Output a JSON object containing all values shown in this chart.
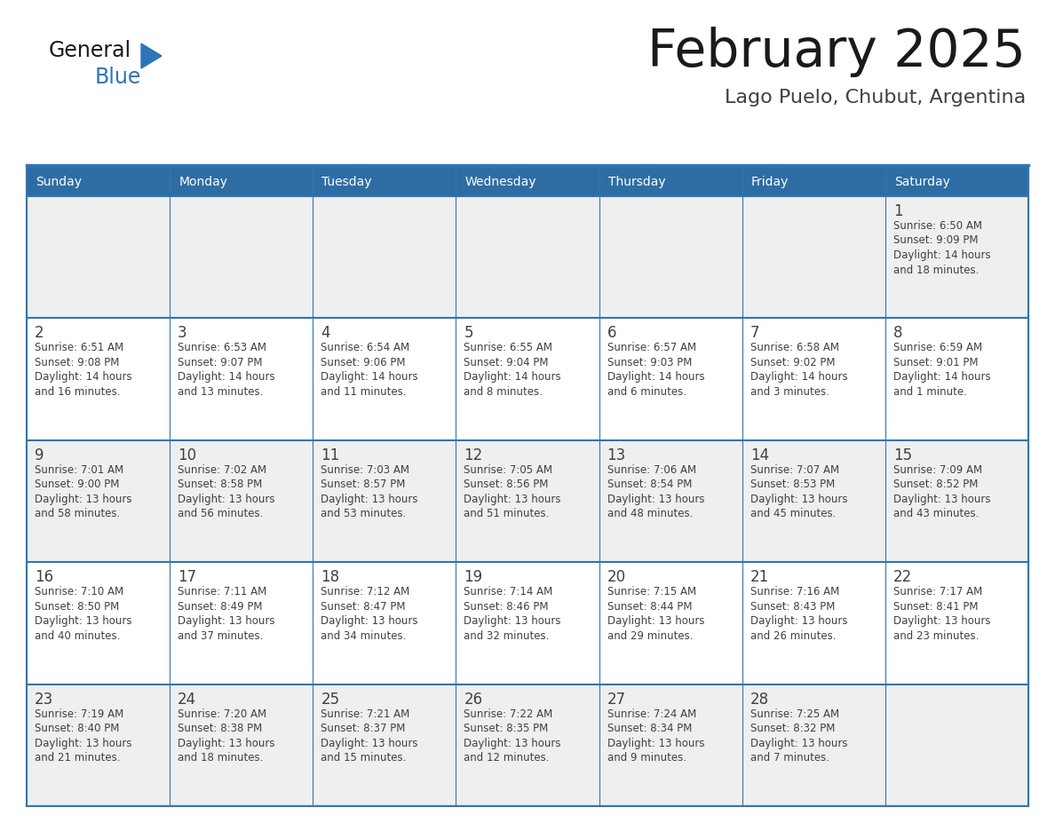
{
  "title": "February 2025",
  "subtitle": "Lago Puelo, Chubut, Argentina",
  "header_bg": "#2E6DA4",
  "header_text": "#FFFFFF",
  "cell_bg_odd": "#EFEFEF",
  "cell_bg_even": "#FFFFFF",
  "border_color": "#2E75B6",
  "row_border_color": "#2E75B6",
  "day_headers": [
    "Sunday",
    "Monday",
    "Tuesday",
    "Wednesday",
    "Thursday",
    "Friday",
    "Saturday"
  ],
  "title_color": "#1a1a1a",
  "subtitle_color": "#404040",
  "day_num_color": "#404040",
  "cell_text_color": "#404040",
  "logo_general_color": "#1a1a1a",
  "logo_blue_color": "#2E75B6",
  "weeks": [
    [
      {
        "day": null,
        "info": ""
      },
      {
        "day": null,
        "info": ""
      },
      {
        "day": null,
        "info": ""
      },
      {
        "day": null,
        "info": ""
      },
      {
        "day": null,
        "info": ""
      },
      {
        "day": null,
        "info": ""
      },
      {
        "day": 1,
        "info": "Sunrise: 6:50 AM\nSunset: 9:09 PM\nDaylight: 14 hours\nand 18 minutes."
      }
    ],
    [
      {
        "day": 2,
        "info": "Sunrise: 6:51 AM\nSunset: 9:08 PM\nDaylight: 14 hours\nand 16 minutes."
      },
      {
        "day": 3,
        "info": "Sunrise: 6:53 AM\nSunset: 9:07 PM\nDaylight: 14 hours\nand 13 minutes."
      },
      {
        "day": 4,
        "info": "Sunrise: 6:54 AM\nSunset: 9:06 PM\nDaylight: 14 hours\nand 11 minutes."
      },
      {
        "day": 5,
        "info": "Sunrise: 6:55 AM\nSunset: 9:04 PM\nDaylight: 14 hours\nand 8 minutes."
      },
      {
        "day": 6,
        "info": "Sunrise: 6:57 AM\nSunset: 9:03 PM\nDaylight: 14 hours\nand 6 minutes."
      },
      {
        "day": 7,
        "info": "Sunrise: 6:58 AM\nSunset: 9:02 PM\nDaylight: 14 hours\nand 3 minutes."
      },
      {
        "day": 8,
        "info": "Sunrise: 6:59 AM\nSunset: 9:01 PM\nDaylight: 14 hours\nand 1 minute."
      }
    ],
    [
      {
        "day": 9,
        "info": "Sunrise: 7:01 AM\nSunset: 9:00 PM\nDaylight: 13 hours\nand 58 minutes."
      },
      {
        "day": 10,
        "info": "Sunrise: 7:02 AM\nSunset: 8:58 PM\nDaylight: 13 hours\nand 56 minutes."
      },
      {
        "day": 11,
        "info": "Sunrise: 7:03 AM\nSunset: 8:57 PM\nDaylight: 13 hours\nand 53 minutes."
      },
      {
        "day": 12,
        "info": "Sunrise: 7:05 AM\nSunset: 8:56 PM\nDaylight: 13 hours\nand 51 minutes."
      },
      {
        "day": 13,
        "info": "Sunrise: 7:06 AM\nSunset: 8:54 PM\nDaylight: 13 hours\nand 48 minutes."
      },
      {
        "day": 14,
        "info": "Sunrise: 7:07 AM\nSunset: 8:53 PM\nDaylight: 13 hours\nand 45 minutes."
      },
      {
        "day": 15,
        "info": "Sunrise: 7:09 AM\nSunset: 8:52 PM\nDaylight: 13 hours\nand 43 minutes."
      }
    ],
    [
      {
        "day": 16,
        "info": "Sunrise: 7:10 AM\nSunset: 8:50 PM\nDaylight: 13 hours\nand 40 minutes."
      },
      {
        "day": 17,
        "info": "Sunrise: 7:11 AM\nSunset: 8:49 PM\nDaylight: 13 hours\nand 37 minutes."
      },
      {
        "day": 18,
        "info": "Sunrise: 7:12 AM\nSunset: 8:47 PM\nDaylight: 13 hours\nand 34 minutes."
      },
      {
        "day": 19,
        "info": "Sunrise: 7:14 AM\nSunset: 8:46 PM\nDaylight: 13 hours\nand 32 minutes."
      },
      {
        "day": 20,
        "info": "Sunrise: 7:15 AM\nSunset: 8:44 PM\nDaylight: 13 hours\nand 29 minutes."
      },
      {
        "day": 21,
        "info": "Sunrise: 7:16 AM\nSunset: 8:43 PM\nDaylight: 13 hours\nand 26 minutes."
      },
      {
        "day": 22,
        "info": "Sunrise: 7:17 AM\nSunset: 8:41 PM\nDaylight: 13 hours\nand 23 minutes."
      }
    ],
    [
      {
        "day": 23,
        "info": "Sunrise: 7:19 AM\nSunset: 8:40 PM\nDaylight: 13 hours\nand 21 minutes."
      },
      {
        "day": 24,
        "info": "Sunrise: 7:20 AM\nSunset: 8:38 PM\nDaylight: 13 hours\nand 18 minutes."
      },
      {
        "day": 25,
        "info": "Sunrise: 7:21 AM\nSunset: 8:37 PM\nDaylight: 13 hours\nand 15 minutes."
      },
      {
        "day": 26,
        "info": "Sunrise: 7:22 AM\nSunset: 8:35 PM\nDaylight: 13 hours\nand 12 minutes."
      },
      {
        "day": 27,
        "info": "Sunrise: 7:24 AM\nSunset: 8:34 PM\nDaylight: 13 hours\nand 9 minutes."
      },
      {
        "day": 28,
        "info": "Sunrise: 7:25 AM\nSunset: 8:32 PM\nDaylight: 13 hours\nand 7 minutes."
      },
      {
        "day": null,
        "info": ""
      }
    ]
  ]
}
